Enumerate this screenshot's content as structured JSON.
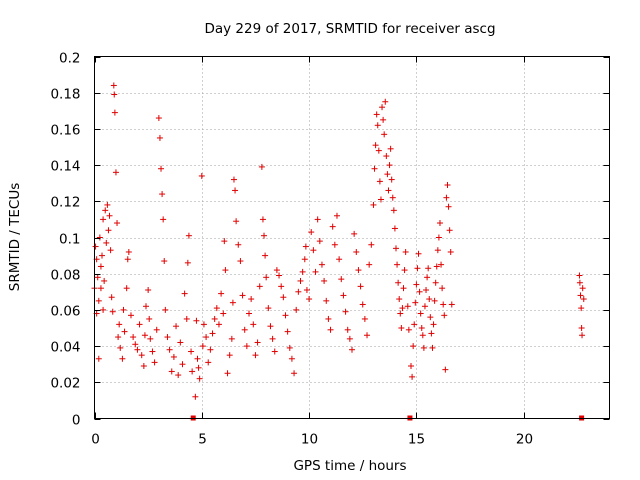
{
  "chart_data": {
    "type": "scatter",
    "title": "Day 229 of 2017, SRMTID for receiver ascg",
    "xlabel": "GPS time / hours",
    "ylabel": "SRMTID / TECUs",
    "xlim": [
      0,
      24
    ],
    "ylim": [
      0,
      0.2
    ],
    "x_ticks": [
      0,
      5,
      10,
      15,
      20
    ],
    "x_tick_labels": [
      "0",
      "5",
      "10",
      "15",
      "20"
    ],
    "y_ticks": [
      0,
      0.02,
      0.04,
      0.06,
      0.08,
      0.1,
      0.12,
      0.14,
      0.16,
      0.18,
      0.2
    ],
    "y_tick_labels": [
      "0",
      "0.02",
      "0.04",
      "0.06",
      "0.08",
      "0.1",
      "0.12",
      "0.14",
      "0.16",
      "0.18",
      "0.2"
    ],
    "grid": true,
    "marker": "+",
    "color": "#e00000",
    "data_gaps_at_zero": [
      4.6,
      14.7,
      22.7
    ],
    "series": [
      {
        "name": "SRMTID",
        "points": [
          [
            0.0,
            0.072
          ],
          [
            0.05,
            0.095
          ],
          [
            0.1,
            0.088
          ],
          [
            0.1,
            0.058
          ],
          [
            0.15,
            0.078
          ],
          [
            0.2,
            0.033
          ],
          [
            0.2,
            0.065
          ],
          [
            0.25,
            0.1
          ],
          [
            0.3,
            0.084
          ],
          [
            0.3,
            0.072
          ],
          [
            0.35,
            0.09
          ],
          [
            0.4,
            0.06
          ],
          [
            0.4,
            0.11
          ],
          [
            0.45,
            0.076
          ],
          [
            0.5,
            0.115
          ],
          [
            0.55,
            0.097
          ],
          [
            0.6,
            0.118
          ],
          [
            0.65,
            0.104
          ],
          [
            0.7,
            0.112
          ],
          [
            0.75,
            0.093
          ],
          [
            0.8,
            0.067
          ],
          [
            0.85,
            0.059
          ],
          [
            0.9,
            0.184
          ],
          [
            0.92,
            0.179
          ],
          [
            0.95,
            0.169
          ],
          [
            1.0,
            0.136
          ],
          [
            1.05,
            0.108
          ],
          [
            1.1,
            0.045
          ],
          [
            1.15,
            0.052
          ],
          [
            1.2,
            0.039
          ],
          [
            1.3,
            0.033
          ],
          [
            1.35,
            0.06
          ],
          [
            1.4,
            0.048
          ],
          [
            1.5,
            0.072
          ],
          [
            1.55,
            0.088
          ],
          [
            1.6,
            0.092
          ],
          [
            1.7,
            0.057
          ],
          [
            1.8,
            0.045
          ],
          [
            1.9,
            0.041
          ],
          [
            2.0,
            0.038
          ],
          [
            2.1,
            0.052
          ],
          [
            2.2,
            0.035
          ],
          [
            2.3,
            0.029
          ],
          [
            2.35,
            0.046
          ],
          [
            2.4,
            0.062
          ],
          [
            2.5,
            0.071
          ],
          [
            2.55,
            0.055
          ],
          [
            2.6,
            0.044
          ],
          [
            2.7,
            0.037
          ],
          [
            2.8,
            0.031
          ],
          [
            2.9,
            0.049
          ],
          [
            3.0,
            0.166
          ],
          [
            3.05,
            0.155
          ],
          [
            3.1,
            0.138
          ],
          [
            3.15,
            0.124
          ],
          [
            3.2,
            0.11
          ],
          [
            3.25,
            0.087
          ],
          [
            3.3,
            0.06
          ],
          [
            3.4,
            0.045
          ],
          [
            3.5,
            0.038
          ],
          [
            3.6,
            0.026
          ],
          [
            3.7,
            0.034
          ],
          [
            3.8,
            0.051
          ],
          [
            3.9,
            0.024
          ],
          [
            4.0,
            0.042
          ],
          [
            4.1,
            0.03
          ],
          [
            4.2,
            0.069
          ],
          [
            4.3,
            0.055
          ],
          [
            4.35,
            0.086
          ],
          [
            4.4,
            0.101
          ],
          [
            4.5,
            0.037
          ],
          [
            4.55,
            0.026
          ],
          [
            4.7,
            0.012
          ],
          [
            4.75,
            0.054
          ],
          [
            4.8,
            0.033
          ],
          [
            4.85,
            0.028
          ],
          [
            4.9,
            0.022
          ],
          [
            5.0,
            0.134
          ],
          [
            5.05,
            0.04
          ],
          [
            5.1,
            0.052
          ],
          [
            5.2,
            0.045
          ],
          [
            5.3,
            0.031
          ],
          [
            5.4,
            0.038
          ],
          [
            5.5,
            0.047
          ],
          [
            5.6,
            0.055
          ],
          [
            5.7,
            0.061
          ],
          [
            5.8,
            0.052
          ],
          [
            5.9,
            0.069
          ],
          [
            6.0,
            0.058
          ],
          [
            6.05,
            0.098
          ],
          [
            6.1,
            0.082
          ],
          [
            6.2,
            0.025
          ],
          [
            6.3,
            0.035
          ],
          [
            6.4,
            0.044
          ],
          [
            6.45,
            0.064
          ],
          [
            6.5,
            0.132
          ],
          [
            6.55,
            0.126
          ],
          [
            6.6,
            0.109
          ],
          [
            6.7,
            0.096
          ],
          [
            6.8,
            0.087
          ],
          [
            6.9,
            0.068
          ],
          [
            7.0,
            0.049
          ],
          [
            7.1,
            0.04
          ],
          [
            7.2,
            0.058
          ],
          [
            7.3,
            0.066
          ],
          [
            7.4,
            0.052
          ],
          [
            7.5,
            0.035
          ],
          [
            7.6,
            0.042
          ],
          [
            7.7,
            0.073
          ],
          [
            7.8,
            0.139
          ],
          [
            7.85,
            0.11
          ],
          [
            7.9,
            0.101
          ],
          [
            7.95,
            0.09
          ],
          [
            8.0,
            0.078
          ],
          [
            8.1,
            0.061
          ],
          [
            8.2,
            0.051
          ],
          [
            8.3,
            0.044
          ],
          [
            8.4,
            0.037
          ],
          [
            8.5,
            0.082
          ],
          [
            8.6,
            0.079
          ],
          [
            8.7,
            0.073
          ],
          [
            8.8,
            0.067
          ],
          [
            8.9,
            0.057
          ],
          [
            9.0,
            0.048
          ],
          [
            9.1,
            0.039
          ],
          [
            9.2,
            0.033
          ],
          [
            9.3,
            0.025
          ],
          [
            9.4,
            0.06
          ],
          [
            9.5,
            0.07
          ],
          [
            9.6,
            0.076
          ],
          [
            9.7,
            0.081
          ],
          [
            9.8,
            0.088
          ],
          [
            9.85,
            0.095
          ],
          [
            9.9,
            0.071
          ],
          [
            10.0,
            0.066
          ],
          [
            10.1,
            0.103
          ],
          [
            10.2,
            0.093
          ],
          [
            10.3,
            0.081
          ],
          [
            10.4,
            0.11
          ],
          [
            10.5,
            0.098
          ],
          [
            10.6,
            0.085
          ],
          [
            10.7,
            0.076
          ],
          [
            10.8,
            0.065
          ],
          [
            10.9,
            0.055
          ],
          [
            11.0,
            0.049
          ],
          [
            11.1,
            0.106
          ],
          [
            11.2,
            0.096
          ],
          [
            11.3,
            0.112
          ],
          [
            11.4,
            0.088
          ],
          [
            11.5,
            0.077
          ],
          [
            11.6,
            0.068
          ],
          [
            11.7,
            0.059
          ],
          [
            11.8,
            0.049
          ],
          [
            11.9,
            0.044
          ],
          [
            12.0,
            0.038
          ],
          [
            12.1,
            0.102
          ],
          [
            12.2,
            0.092
          ],
          [
            12.3,
            0.082
          ],
          [
            12.4,
            0.073
          ],
          [
            12.5,
            0.063
          ],
          [
            12.6,
            0.055
          ],
          [
            12.7,
            0.046
          ],
          [
            12.8,
            0.085
          ],
          [
            12.9,
            0.096
          ],
          [
            13.0,
            0.118
          ],
          [
            13.05,
            0.138
          ],
          [
            13.1,
            0.151
          ],
          [
            13.15,
            0.168
          ],
          [
            13.2,
            0.162
          ],
          [
            13.25,
            0.148
          ],
          [
            13.3,
            0.131
          ],
          [
            13.35,
            0.121
          ],
          [
            13.4,
            0.172
          ],
          [
            13.45,
            0.165
          ],
          [
            13.5,
            0.157
          ],
          [
            13.55,
            0.175
          ],
          [
            13.6,
            0.145
          ],
          [
            13.65,
            0.135
          ],
          [
            13.7,
            0.126
          ],
          [
            13.75,
            0.14
          ],
          [
            13.8,
            0.149
          ],
          [
            13.85,
            0.132
          ],
          [
            13.9,
            0.122
          ],
          [
            13.95,
            0.115
          ],
          [
            14.0,
            0.105
          ],
          [
            14.05,
            0.094
          ],
          [
            14.1,
            0.085
          ],
          [
            14.15,
            0.075
          ],
          [
            14.2,
            0.066
          ],
          [
            14.25,
            0.058
          ],
          [
            14.3,
            0.05
          ],
          [
            14.35,
            0.061
          ],
          [
            14.4,
            0.072
          ],
          [
            14.45,
            0.082
          ],
          [
            14.5,
            0.092
          ],
          [
            14.6,
            0.062
          ],
          [
            14.65,
            0.049
          ],
          [
            14.75,
            0.029
          ],
          [
            14.8,
            0.023
          ],
          [
            14.85,
            0.04
          ],
          [
            14.9,
            0.052
          ],
          [
            14.95,
            0.064
          ],
          [
            15.0,
            0.074
          ],
          [
            15.05,
            0.083
          ],
          [
            15.1,
            0.091
          ],
          [
            15.15,
            0.07
          ],
          [
            15.2,
            0.058
          ],
          [
            15.25,
            0.05
          ],
          [
            15.3,
            0.046
          ],
          [
            15.35,
            0.039
          ],
          [
            15.4,
            0.062
          ],
          [
            15.45,
            0.071
          ],
          [
            15.5,
            0.078
          ],
          [
            15.55,
            0.083
          ],
          [
            15.6,
            0.066
          ],
          [
            15.65,
            0.056
          ],
          [
            15.7,
            0.047
          ],
          [
            15.75,
            0.039
          ],
          [
            15.8,
            0.052
          ],
          [
            15.85,
            0.065
          ],
          [
            15.9,
            0.075
          ],
          [
            15.95,
            0.084
          ],
          [
            16.0,
            0.093
          ],
          [
            16.05,
            0.1
          ],
          [
            16.1,
            0.108
          ],
          [
            16.15,
            0.085
          ],
          [
            16.2,
            0.072
          ],
          [
            16.25,
            0.063
          ],
          [
            16.3,
            0.057
          ],
          [
            16.35,
            0.027
          ],
          [
            16.4,
            0.122
          ],
          [
            16.45,
            0.129
          ],
          [
            16.5,
            0.117
          ],
          [
            16.55,
            0.104
          ],
          [
            16.6,
            0.092
          ],
          [
            16.65,
            0.063
          ],
          [
            22.6,
            0.079
          ],
          [
            22.62,
            0.075
          ],
          [
            22.65,
            0.068
          ],
          [
            22.68,
            0.061
          ],
          [
            22.7,
            0.05
          ],
          [
            22.72,
            0.046
          ],
          [
            22.75,
            0.072
          ],
          [
            22.8,
            0.066
          ]
        ]
      }
    ]
  }
}
